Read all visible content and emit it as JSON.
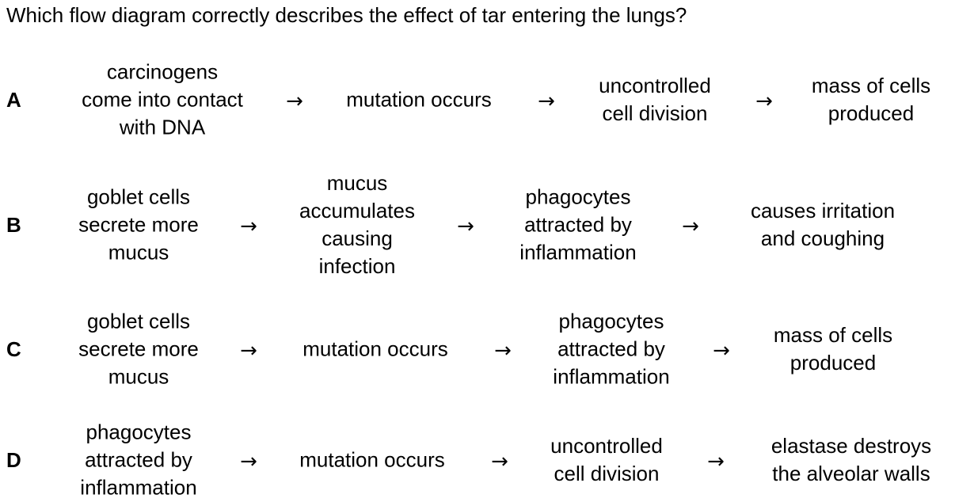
{
  "question": "Which flow diagram correctly describes the effect of tar entering the lungs?",
  "arrow_glyph": "→",
  "options": [
    {
      "letter": "A",
      "steps": [
        [
          "carcinogens",
          "come into contact",
          "with DNA"
        ],
        [
          "mutation occurs"
        ],
        [
          "uncontrolled",
          "cell division"
        ],
        [
          "mass of cells",
          "produced"
        ]
      ]
    },
    {
      "letter": "B",
      "steps": [
        [
          "goblet cells",
          "secrete more",
          "mucus"
        ],
        [
          "mucus",
          "accumulates",
          "causing",
          "infection"
        ],
        [
          "phagocytes",
          "attracted by",
          "inflammation"
        ],
        [
          "causes irritation",
          "and coughing"
        ]
      ]
    },
    {
      "letter": "C",
      "steps": [
        [
          "goblet cells",
          "secrete more",
          "mucus"
        ],
        [
          "mutation occurs"
        ],
        [
          "phagocytes",
          "attracted by",
          "inflammation"
        ],
        [
          "mass of cells",
          "produced"
        ]
      ]
    },
    {
      "letter": "D",
      "steps": [
        [
          "phagocytes",
          "attracted by",
          "inflammation"
        ],
        [
          "mutation occurs"
        ],
        [
          "uncontrolled",
          "cell division"
        ],
        [
          "elastase destroys",
          "the alveolar walls"
        ]
      ]
    }
  ]
}
